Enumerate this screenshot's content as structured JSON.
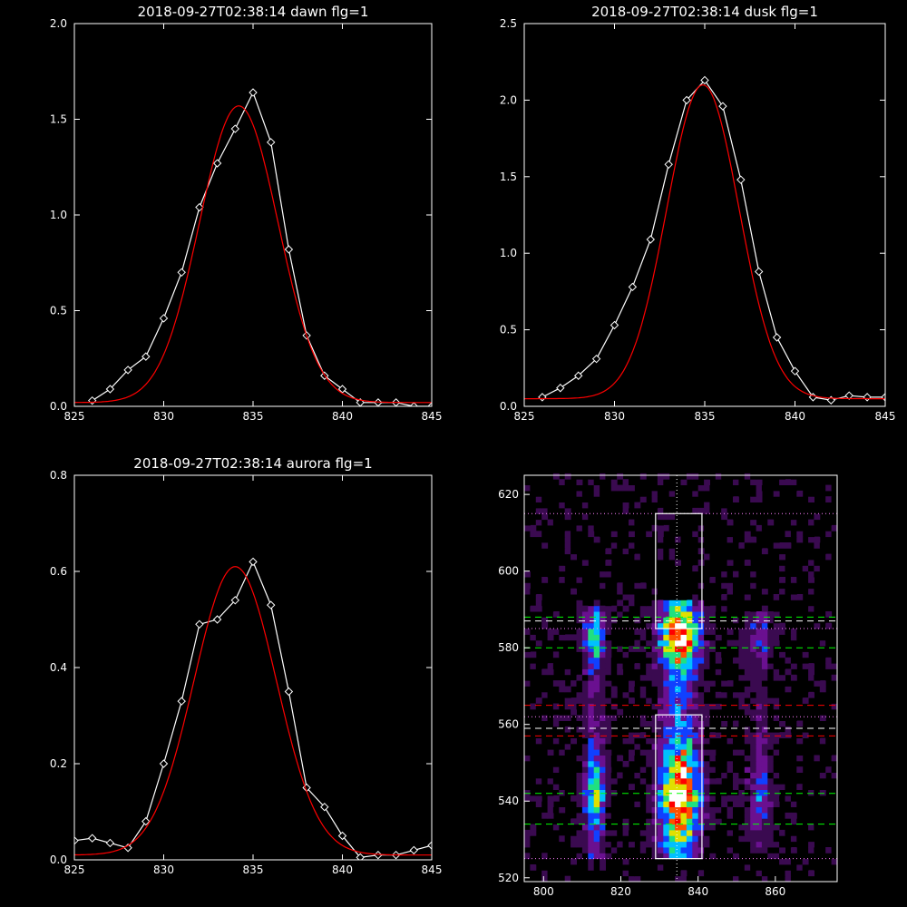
{
  "chart_data": [
    {
      "type": "line",
      "title": "2018-09-27T02:38:14 dawn flg=1",
      "xlim": [
        825,
        845
      ],
      "ylim": [
        0.0,
        2.0
      ],
      "xticks": [
        "825",
        "830",
        "835",
        "840",
        "845"
      ],
      "yticks": [
        "0.0",
        "0.5",
        "1.0",
        "1.5",
        "2.0"
      ],
      "grid": false,
      "series": [
        {
          "color": "#ffffff",
          "marker": "diamond",
          "x": [
            826,
            827,
            828,
            829,
            830,
            831,
            832,
            833,
            834,
            835,
            836,
            837,
            838,
            839,
            840,
            841,
            842,
            843,
            844,
            845
          ],
          "y": [
            0.03,
            0.09,
            0.19,
            0.26,
            0.46,
            0.7,
            1.04,
            1.27,
            1.45,
            1.64,
            1.38,
            0.82,
            0.37,
            0.16,
            0.09,
            0.02,
            0.02,
            0.02,
            0.0,
            0.0
          ]
        },
        {
          "color": "#ff0000",
          "fit": "gaussian",
          "peak": 1.55,
          "center": 834.2,
          "sigma": 2.2,
          "baseline": 0.02
        }
      ]
    },
    {
      "type": "line",
      "title": "2018-09-27T02:38:14 dusk flg=1",
      "xlim": [
        825,
        845
      ],
      "ylim": [
        0.0,
        2.5
      ],
      "xticks": [
        "825",
        "830",
        "835",
        "840",
        "845"
      ],
      "yticks": [
        "0.0",
        "0.5",
        "1.0",
        "1.5",
        "2.0",
        "2.5"
      ],
      "grid": false,
      "series": [
        {
          "color": "#ffffff",
          "marker": "diamond",
          "x": [
            826,
            827,
            828,
            829,
            830,
            831,
            832,
            833,
            834,
            835,
            836,
            837,
            838,
            839,
            840,
            841,
            842,
            843,
            844,
            845
          ],
          "y": [
            0.06,
            0.12,
            0.2,
            0.31,
            0.53,
            0.78,
            1.09,
            1.58,
            2.0,
            2.13,
            1.96,
            1.48,
            0.88,
            0.45,
            0.23,
            0.06,
            0.04,
            0.07,
            0.06,
            0.06
          ]
        },
        {
          "color": "#ff0000",
          "fit": "gaussian",
          "peak": 2.05,
          "center": 834.9,
          "sigma": 2.0,
          "baseline": 0.05
        }
      ]
    },
    {
      "type": "line",
      "title": "2018-09-27T02:38:14 aurora flg=1",
      "xlim": [
        825,
        845
      ],
      "ylim": [
        0.0,
        0.8
      ],
      "xticks": [
        "825",
        "830",
        "835",
        "840",
        "845"
      ],
      "yticks": [
        "0.0",
        "0.2",
        "0.4",
        "0.6",
        "0.8"
      ],
      "grid": false,
      "series": [
        {
          "color": "#ffffff",
          "marker": "diamond",
          "x": [
            825,
            826,
            827,
            828,
            829,
            830,
            831,
            832,
            833,
            834,
            835,
            836,
            837,
            838,
            839,
            840,
            841,
            842,
            843,
            844,
            845
          ],
          "y": [
            0.04,
            0.045,
            0.035,
            0.025,
            0.08,
            0.2,
            0.33,
            0.49,
            0.5,
            0.54,
            0.62,
            0.53,
            0.35,
            0.15,
            0.11,
            0.05,
            0.005,
            0.01,
            0.01,
            0.02,
            0.03
          ]
        },
        {
          "color": "#ff0000",
          "fit": "gaussian",
          "peak": 0.6,
          "center": 834.0,
          "sigma": 2.3,
          "baseline": 0.01
        }
      ]
    },
    {
      "type": "heatmap",
      "title": "",
      "xlim": [
        795,
        876
      ],
      "ylim": [
        519,
        625
      ],
      "xticks": [
        "800",
        "820",
        "840",
        "860"
      ],
      "yticks": [
        "520",
        "540",
        "560",
        "580",
        "600",
        "620"
      ],
      "grid": false,
      "colormap": [
        "#000000",
        "#3a0a50",
        "#6a1090",
        "#1040ff",
        "#00c0ff",
        "#20e080",
        "#e0e000",
        "#ff5000",
        "#ff0000",
        "#ffffff"
      ],
      "bands": [
        {
          "x": [
            809,
            816
          ],
          "y": [
            525,
            590
          ],
          "peak": 0.55
        },
        {
          "x": [
            828,
            841
          ],
          "y": [
            525,
            592
          ],
          "peak": 1.0
        },
        {
          "x": [
            851,
            859
          ],
          "y": [
            526,
            588
          ],
          "peak": 0.3
        }
      ],
      "vertical_line": {
        "x": 834.5,
        "style": "dotted",
        "color": "#ffffff"
      },
      "boxes": [
        {
          "x": [
            829,
            841
          ],
          "y": [
            585,
            615
          ],
          "color": "#ffffff"
        },
        {
          "x": [
            829,
            841
          ],
          "y": [
            525,
            562.5
          ],
          "color": "#ffffff"
        }
      ],
      "hlines": [
        {
          "y": 615,
          "style": "dotted",
          "color": "#ff80ff"
        },
        {
          "y": 588,
          "style": "dashed",
          "color": "#00ff00"
        },
        {
          "y": 587,
          "style": "dashed",
          "color": "#ffffff"
        },
        {
          "y": 585,
          "style": "dotted",
          "color": "#ff80ff"
        },
        {
          "y": 580,
          "style": "dashed",
          "color": "#00ff00"
        },
        {
          "y": 565,
          "style": "dashed",
          "color": "#ff0000"
        },
        {
          "y": 562,
          "style": "dotted",
          "color": "#ff80ff"
        },
        {
          "y": 559,
          "style": "dashed",
          "color": "#ffffff"
        },
        {
          "y": 557,
          "style": "dashed",
          "color": "#ff0000"
        },
        {
          "y": 542,
          "style": "dashed",
          "color": "#00ff00"
        },
        {
          "y": 534,
          "style": "dashed",
          "color": "#00ff00"
        },
        {
          "y": 525,
          "style": "dotted",
          "color": "#ff80ff"
        }
      ]
    }
  ]
}
